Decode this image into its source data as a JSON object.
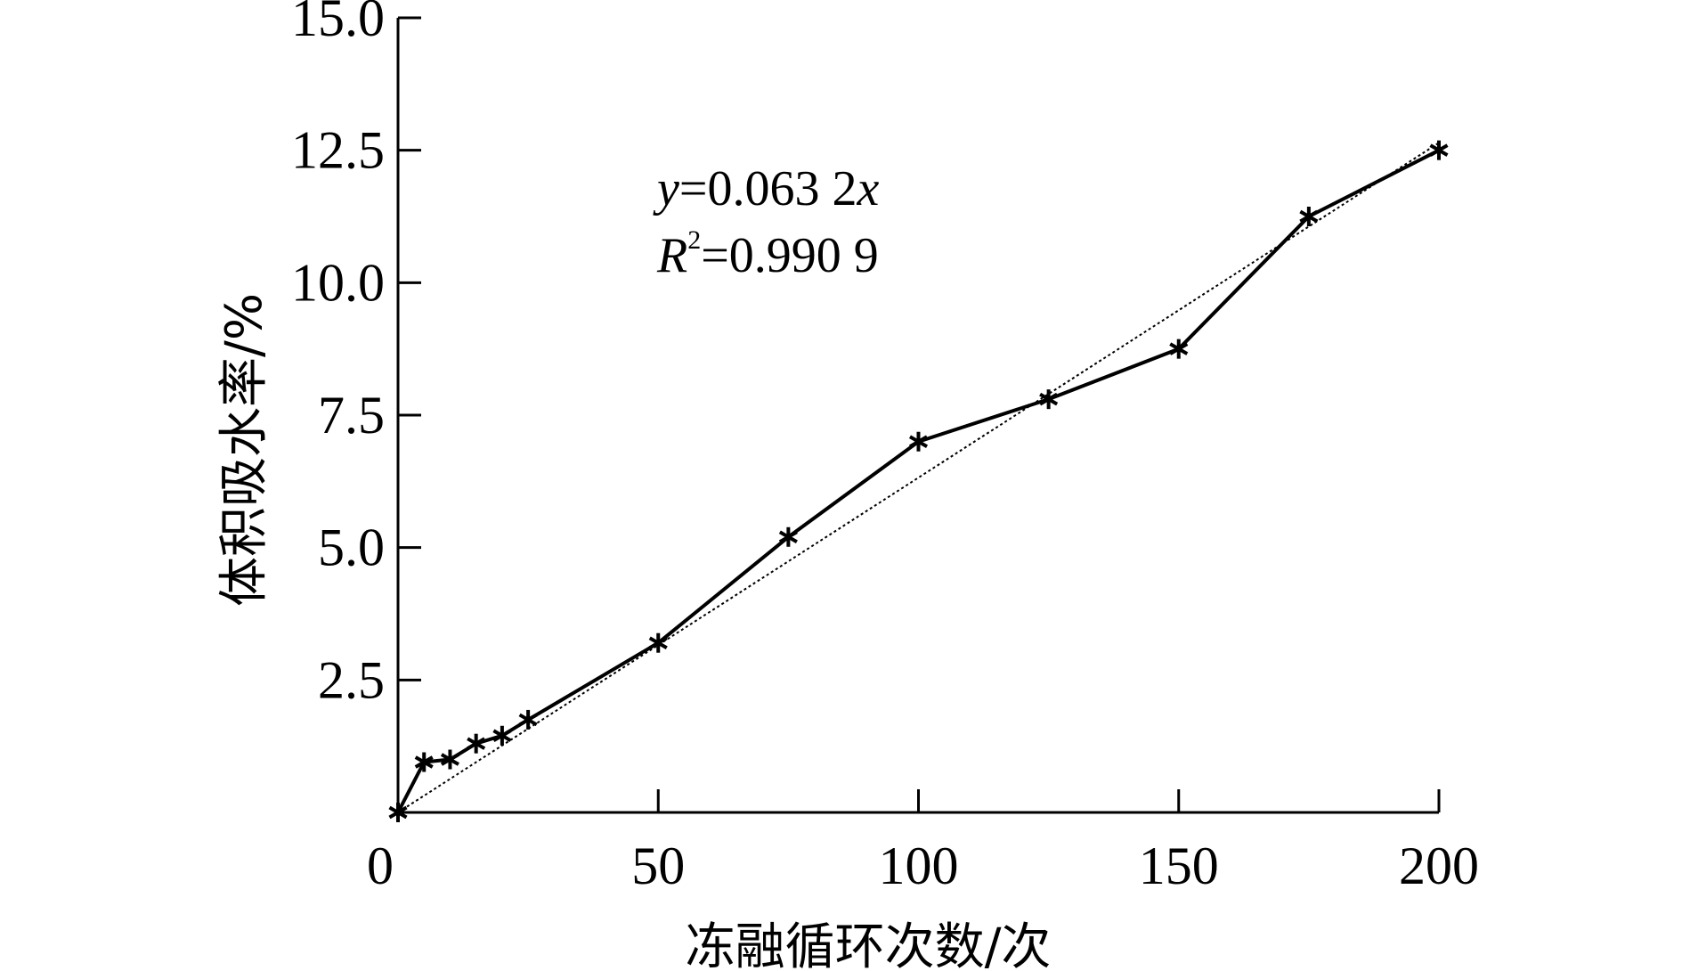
{
  "chart_data": {
    "type": "line",
    "xlabel": "冻融循环次数/次",
    "ylabel": "体积吸水率/%",
    "xlim": [
      0,
      200
    ],
    "ylim": [
      0,
      15
    ],
    "x_ticks": [
      0,
      50,
      100,
      150,
      200
    ],
    "x_tick_labels": [
      "0",
      "50",
      "100",
      "150",
      "200"
    ],
    "y_ticks": [
      2.5,
      5.0,
      7.5,
      10.0,
      12.5,
      15.0
    ],
    "y_tick_labels": [
      "2.5",
      "5.0",
      "7.5",
      "10.0",
      "12.5",
      "15.0"
    ],
    "grid": false,
    "series": [
      {
        "marker": "asterisk",
        "x": [
          0,
          5,
          10,
          15,
          20,
          25,
          50,
          75,
          100,
          125,
          150,
          175,
          200
        ],
        "values": [
          0,
          0.95,
          1.0,
          1.3,
          1.45,
          1.75,
          3.2,
          5.2,
          7.0,
          7.8,
          8.75,
          11.25,
          12.5
        ]
      }
    ],
    "trendline": {
      "style": "dotted",
      "slope": 0.0632,
      "equation_y": "y",
      "equation_rhs": "=0.063 2",
      "equation_x": "x",
      "r2_var": "R",
      "r2_sup": "2",
      "r2_rhs": "=0.990 9"
    }
  }
}
